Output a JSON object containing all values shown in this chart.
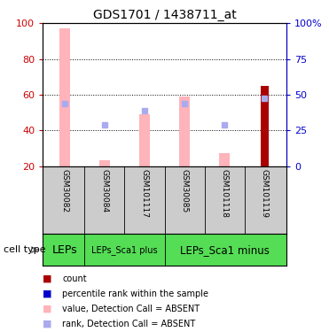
{
  "title": "GDS1701 / 1438711_at",
  "samples": [
    "GSM30082",
    "GSM30084",
    "GSM101117",
    "GSM30085",
    "GSM101118",
    "GSM101119"
  ],
  "cell_types": [
    {
      "label": "LEPs",
      "start": 0,
      "end": 0,
      "font_size": 9
    },
    {
      "label": "LEPs_Sca1 plus",
      "start": 1,
      "end": 2,
      "font_size": 7
    },
    {
      "label": "LEPs_Sca1 minus",
      "start": 3,
      "end": 5,
      "font_size": 8
    }
  ],
  "ylim_min": 20,
  "ylim_max": 100,
  "yticks_left": [
    20,
    40,
    60,
    80,
    100
  ],
  "right_tick_positions": [
    20,
    40,
    60,
    80,
    100
  ],
  "right_tick_labels": [
    "0",
    "25",
    "50",
    "75",
    "100%"
  ],
  "pink_bar_bottom": [
    20,
    20,
    20,
    20,
    20,
    20
  ],
  "pink_bar_top": [
    97,
    23,
    49,
    59,
    27,
    20
  ],
  "blue_marker_y": [
    55,
    43,
    51,
    55,
    43,
    58
  ],
  "red_bar_bottom": [
    20,
    20,
    20,
    20,
    20,
    20
  ],
  "red_bar_top": [
    20,
    20,
    20,
    20,
    20,
    65
  ],
  "pink_color": "#FFB3BA",
  "light_blue_color": "#AAAAEE",
  "dark_red_color": "#AA0000",
  "axis_left_color": "#CC0000",
  "axis_right_color": "#0000CC",
  "label_area_bg": "#CCCCCC",
  "cell_type_bg": "#55DD55",
  "bar_width": 0.25,
  "legend_items": [
    {
      "color": "#AA0000",
      "label": "count"
    },
    {
      "color": "#0000CC",
      "label": "percentile rank within the sample"
    },
    {
      "color": "#FFB3BA",
      "label": "value, Detection Call = ABSENT"
    },
    {
      "color": "#AAAAEE",
      "label": "rank, Detection Call = ABSENT"
    }
  ]
}
